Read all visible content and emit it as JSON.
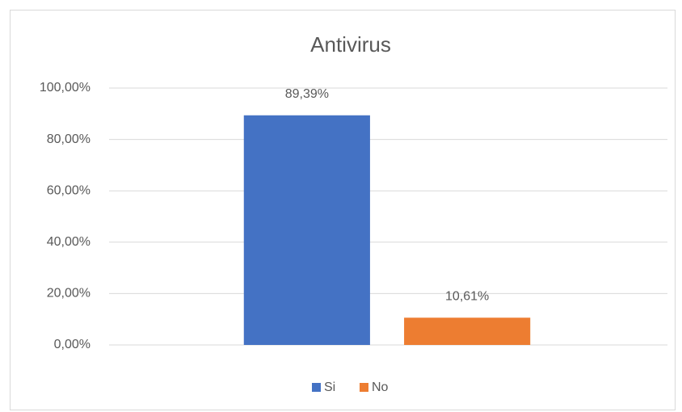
{
  "chart_data": {
    "type": "bar",
    "title": "Antivirus",
    "categories": [
      null
    ],
    "series": [
      {
        "name": "Si",
        "color": "#4472c4",
        "values": [
          89.39
        ],
        "value_labels": [
          "89,39%"
        ]
      },
      {
        "name": "No",
        "color": "#ed7d31",
        "values": [
          10.61
        ],
        "value_labels": [
          "10,61%"
        ]
      }
    ],
    "ylim": [
      0,
      100
    ],
    "yticks": [
      {
        "value": 0,
        "label": "0,00%"
      },
      {
        "value": 20,
        "label": "20,00%"
      },
      {
        "value": 40,
        "label": "40,00%"
      },
      {
        "value": 60,
        "label": "60,00%"
      },
      {
        "value": 80,
        "label": "80,00%"
      },
      {
        "value": 100,
        "label": "100,00%"
      }
    ],
    "grid": true,
    "legend": "bottom"
  }
}
